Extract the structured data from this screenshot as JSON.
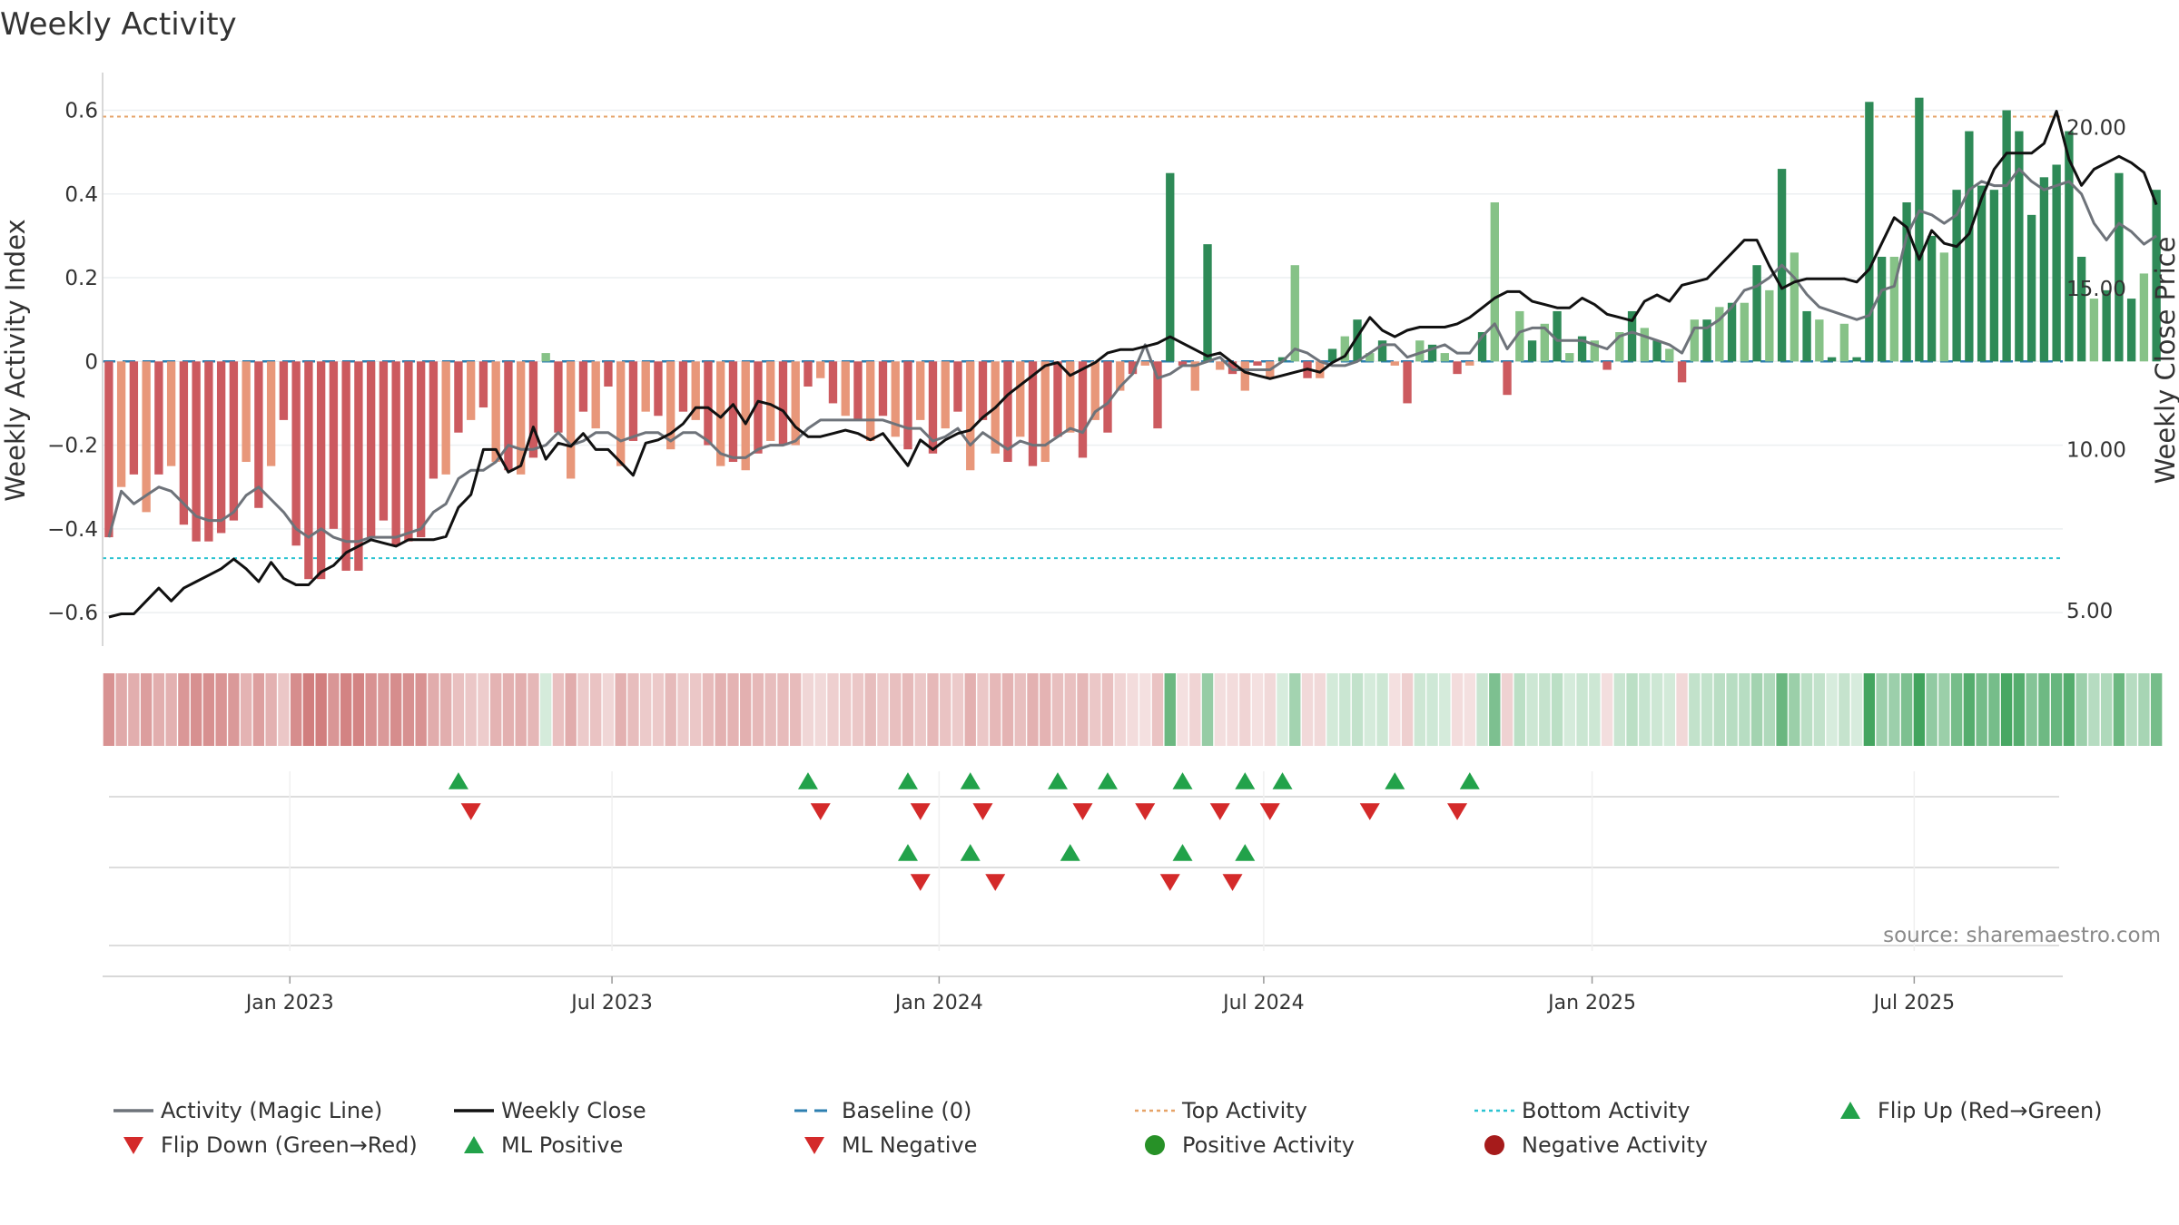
{
  "chart_data": {
    "type": "bar",
    "title": "Weekly Activity",
    "ylabel_left": "Weekly Activity Index",
    "ylabel_right": "Weekly Close Price",
    "ylim_left": [
      -0.68,
      0.69
    ],
    "ylim_right": [
      3.9,
      21.7
    ],
    "yticks_left": [
      {
        "v": 0.6,
        "label": "0.6"
      },
      {
        "v": 0.4,
        "label": "0.4"
      },
      {
        "v": 0.2,
        "label": "0.2"
      },
      {
        "v": 0,
        "label": "0"
      },
      {
        "v": -0.2,
        "label": "−0.2"
      },
      {
        "v": -0.4,
        "label": "−0.4"
      },
      {
        "v": -0.6,
        "label": "−0.6"
      }
    ],
    "yticks_right": [
      {
        "v": 20,
        "label": "20.00"
      },
      {
        "v": 15,
        "label": "15.00"
      },
      {
        "v": 10,
        "label": "10.00"
      },
      {
        "v": 5,
        "label": "5.00"
      }
    ],
    "x_week_range": [
      0,
      156
    ],
    "xticks": [
      {
        "week": 14.5,
        "label": "Jan 2023"
      },
      {
        "week": 40.3,
        "label": "Jul 2023"
      },
      {
        "week": 66.5,
        "label": "Jan 2024"
      },
      {
        "week": 92.5,
        "label": "Jul 2024"
      },
      {
        "week": 118.8,
        "label": "Jan 2025"
      },
      {
        "week": 144.6,
        "label": "Jul 2025"
      }
    ],
    "top_activity": 0.585,
    "bottom_activity": -0.47,
    "baseline": 0,
    "activity": [
      -0.42,
      -0.3,
      -0.27,
      -0.36,
      -0.27,
      -0.25,
      -0.39,
      -0.43,
      -0.43,
      -0.41,
      -0.38,
      -0.24,
      -0.35,
      -0.25,
      -0.14,
      -0.44,
      -0.52,
      -0.52,
      -0.4,
      -0.5,
      -0.5,
      -0.42,
      -0.38,
      -0.44,
      -0.43,
      -0.42,
      -0.28,
      -0.27,
      -0.17,
      -0.14,
      -0.11,
      -0.24,
      -0.26,
      -0.27,
      -0.23,
      0.02,
      -0.17,
      -0.28,
      -0.12,
      -0.16,
      -0.06,
      -0.25,
      -0.19,
      -0.12,
      -0.13,
      -0.21,
      -0.12,
      -0.14,
      -0.2,
      -0.25,
      -0.24,
      -0.26,
      -0.22,
      -0.19,
      -0.2,
      -0.2,
      -0.06,
      -0.04,
      -0.1,
      -0.13,
      -0.14,
      -0.19,
      -0.13,
      -0.18,
      -0.21,
      -0.14,
      -0.22,
      -0.16,
      -0.12,
      -0.26,
      -0.14,
      -0.22,
      -0.24,
      -0.18,
      -0.25,
      -0.24,
      -0.18,
      -0.17,
      -0.23,
      -0.14,
      -0.17,
      -0.07,
      -0.03,
      -0.01,
      -0.16,
      0.45,
      -0.01,
      -0.07,
      0.28,
      -0.02,
      -0.03,
      -0.07,
      -0.01,
      -0.04,
      0.01,
      0.23,
      -0.04,
      -0.04,
      0.03,
      0.06,
      0.1,
      0.02,
      0.05,
      -0.01,
      -0.1,
      0.05,
      0.04,
      0.02,
      -0.03,
      -0.01,
      0.07,
      0.38,
      -0.08,
      0.12,
      0.05,
      0.09,
      0.12,
      0.02,
      0.06,
      0.05,
      -0.02,
      0.07,
      0.12,
      0.08,
      0.05,
      0.03,
      -0.05,
      0.1,
      0.1,
      0.13,
      0.14,
      0.14,
      0.23,
      0.17,
      0.46,
      0.26,
      0.12,
      0.1,
      0.01,
      0.09,
      0.01,
      0.62,
      0.25,
      0.25,
      0.38,
      0.63,
      0.3,
      0.26,
      0.41,
      0.55,
      0.42,
      0.41,
      0.6,
      0.55,
      0.35,
      0.44,
      0.47,
      0.55,
      0.25,
      0.15,
      0.17,
      0.45,
      0.15,
      0.21,
      0.41
    ],
    "magic_line": [
      -0.42,
      -0.31,
      -0.34,
      -0.32,
      -0.3,
      -0.31,
      -0.34,
      -0.37,
      -0.38,
      -0.38,
      -0.36,
      -0.32,
      -0.3,
      -0.33,
      -0.36,
      -0.4,
      -0.42,
      -0.4,
      -0.42,
      -0.43,
      -0.43,
      -0.42,
      -0.42,
      -0.42,
      -0.41,
      -0.4,
      -0.36,
      -0.34,
      -0.28,
      -0.26,
      -0.26,
      -0.24,
      -0.2,
      -0.21,
      -0.21,
      -0.2,
      -0.17,
      -0.2,
      -0.19,
      -0.17,
      -0.17,
      -0.19,
      -0.18,
      -0.17,
      -0.17,
      -0.19,
      -0.17,
      -0.17,
      -0.19,
      -0.22,
      -0.23,
      -0.23,
      -0.21,
      -0.2,
      -0.2,
      -0.19,
      -0.16,
      -0.14,
      -0.14,
      -0.14,
      -0.14,
      -0.14,
      -0.14,
      -0.15,
      -0.16,
      -0.16,
      -0.19,
      -0.18,
      -0.16,
      -0.2,
      -0.17,
      -0.19,
      -0.21,
      -0.19,
      -0.2,
      -0.2,
      -0.18,
      -0.16,
      -0.17,
      -0.12,
      -0.1,
      -0.06,
      -0.03,
      0.04,
      -0.04,
      -0.03,
      -0.01,
      -0.01,
      0.0,
      0.01,
      -0.02,
      -0.02,
      -0.02,
      -0.02,
      0.0,
      0.03,
      0.02,
      0.0,
      -0.01,
      -0.01,
      0.0,
      0.02,
      0.04,
      0.04,
      0.01,
      0.02,
      0.03,
      0.04,
      0.02,
      0.02,
      0.06,
      0.09,
      0.03,
      0.07,
      0.08,
      0.08,
      0.05,
      0.05,
      0.05,
      0.04,
      0.03,
      0.06,
      0.07,
      0.06,
      0.05,
      0.04,
      0.02,
      0.08,
      0.08,
      0.1,
      0.13,
      0.17,
      0.18,
      0.2,
      0.23,
      0.2,
      0.16,
      0.13,
      0.12,
      0.11,
      0.1,
      0.11,
      0.17,
      0.18,
      0.3,
      0.36,
      0.35,
      0.33,
      0.35,
      0.41,
      0.43,
      0.42,
      0.42,
      0.46,
      0.43,
      0.41,
      0.42,
      0.43,
      0.4,
      0.33,
      0.29,
      0.33,
      0.31,
      0.28,
      0.3
    ],
    "weekly_close": [
      4.8,
      4.9,
      4.9,
      5.3,
      5.7,
      5.3,
      5.7,
      5.9,
      6.1,
      6.3,
      6.6,
      6.3,
      5.9,
      6.5,
      6.0,
      5.8,
      5.8,
      6.2,
      6.4,
      6.8,
      7.0,
      7.2,
      7.1,
      7.0,
      7.2,
      7.2,
      7.2,
      7.3,
      8.2,
      8.6,
      10.0,
      10.0,
      9.3,
      9.5,
      10.7,
      9.7,
      10.2,
      10.1,
      10.5,
      10.0,
      10.0,
      9.6,
      9.2,
      10.2,
      10.3,
      10.5,
      10.8,
      11.3,
      11.3,
      11.0,
      11.4,
      10.8,
      11.5,
      11.4,
      11.2,
      10.7,
      10.4,
      10.4,
      10.5,
      10.6,
      10.5,
      10.3,
      10.5,
      10.0,
      9.5,
      10.3,
      10.0,
      10.3,
      10.5,
      10.6,
      11.0,
      11.3,
      11.7,
      12.0,
      12.3,
      12.6,
      12.7,
      12.3,
      12.5,
      12.7,
      13.0,
      13.1,
      13.1,
      13.2,
      13.3,
      13.5,
      13.3,
      13.1,
      12.9,
      13.0,
      12.7,
      12.4,
      12.3,
      12.2,
      12.3,
      12.4,
      12.5,
      12.4,
      12.7,
      12.9,
      13.5,
      14.1,
      13.7,
      13.5,
      13.7,
      13.8,
      13.8,
      13.8,
      13.9,
      14.1,
      14.4,
      14.7,
      14.9,
      14.9,
      14.6,
      14.5,
      14.4,
      14.4,
      14.7,
      14.5,
      14.2,
      14.1,
      14.0,
      14.6,
      14.8,
      14.6,
      15.1,
      15.2,
      15.3,
      15.7,
      16.1,
      16.5,
      16.5,
      15.7,
      15.0,
      15.2,
      15.3,
      15.3,
      15.3,
      15.3,
      15.2,
      15.6,
      16.4,
      17.2,
      16.9,
      15.9,
      16.8,
      16.4,
      16.3,
      16.7,
      17.8,
      18.7,
      19.2,
      19.2,
      19.2,
      19.5,
      20.5,
      19.0,
      18.2,
      18.7,
      18.9,
      19.1,
      18.9,
      18.6,
      17.6
    ],
    "flip_up": [
      28,
      56,
      64,
      69,
      76,
      80,
      86,
      91,
      94,
      103,
      109
    ],
    "flip_down": [
      29,
      57,
      65,
      70,
      78,
      83,
      89,
      93,
      101,
      108
    ],
    "ml_positive": [
      64,
      69,
      77,
      86,
      91
    ],
    "ml_negative": [
      65,
      71,
      85,
      90
    ],
    "source": "source: sharemaestro.com",
    "legend": [
      {
        "label": "Activity (Magic Line)",
        "kind": "line",
        "color": "#6e737a"
      },
      {
        "label": "Weekly Close",
        "kind": "line",
        "color": "#111111"
      },
      {
        "label": "Baseline (0)",
        "kind": "dash",
        "color": "#2d7fb0"
      },
      {
        "label": "Top Activity",
        "kind": "dot",
        "color": "#e6a368"
      },
      {
        "label": "Bottom Activity",
        "kind": "dot",
        "color": "#2bc3d1"
      },
      {
        "label": "Flip Up (Red→Green)",
        "kind": "tri-up",
        "color": "#22a24a"
      },
      {
        "label": "Flip Down (Green→Red)",
        "kind": "tri-down",
        "color": "#d42a2a"
      },
      {
        "label": "ML Positive",
        "kind": "tri-up",
        "color": "#22a24a"
      },
      {
        "label": "ML Negative",
        "kind": "tri-down",
        "color": "#d42a2a"
      },
      {
        "label": "Positive Activity",
        "kind": "circle",
        "color": "#279127"
      },
      {
        "label": "Negative Activity",
        "kind": "circle",
        "color": "#a61b1b"
      }
    ],
    "colors": {
      "pos_strong": "#2e8a57",
      "pos_light": "#86c287",
      "neg_strong": "#cc5a5f",
      "neg_light": "#e8977a",
      "heat_pos": "#2d9a4c",
      "heat_neg": "#c45a5a"
    }
  }
}
